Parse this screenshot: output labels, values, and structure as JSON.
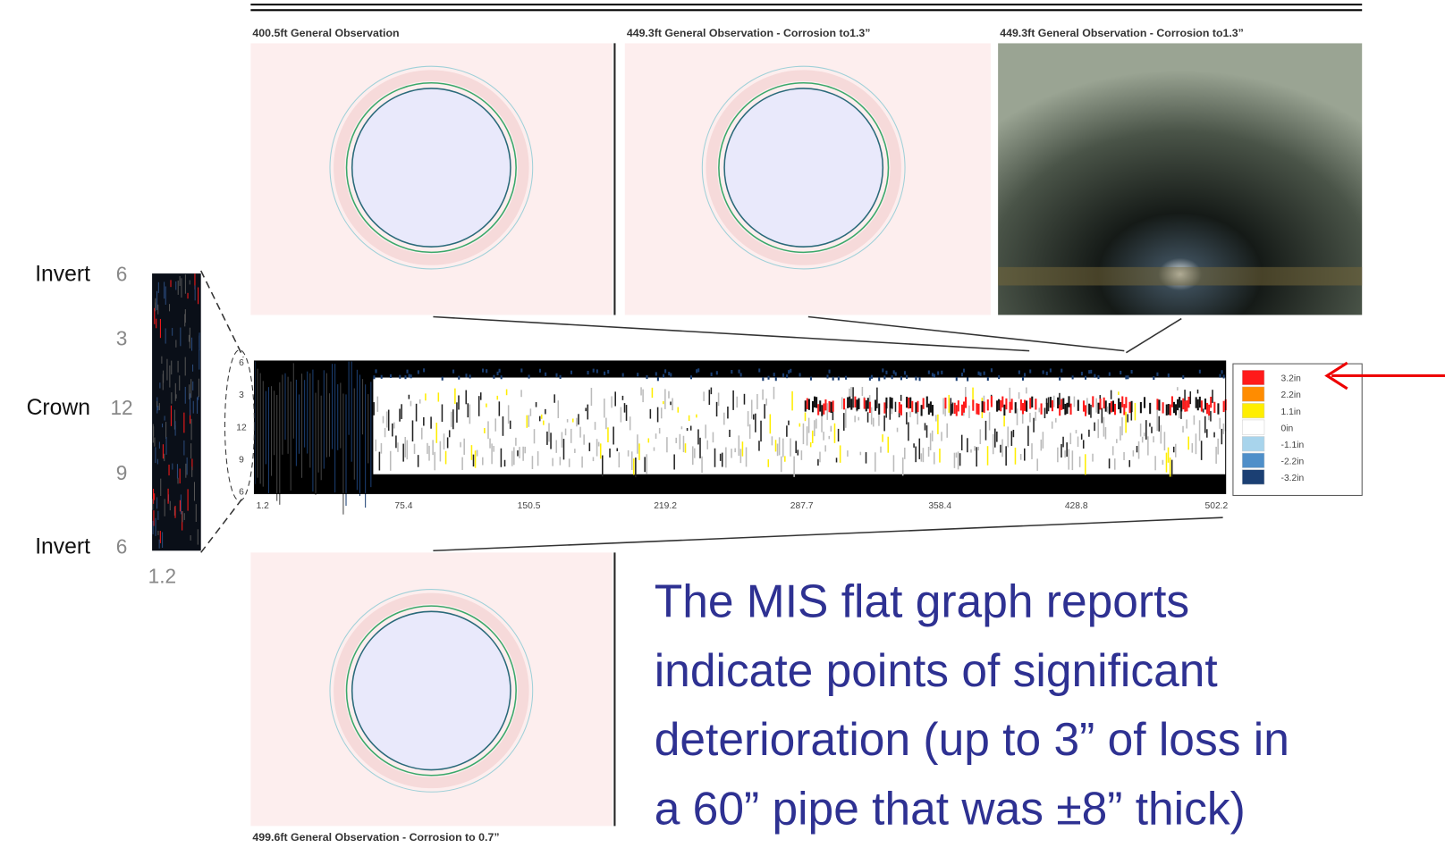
{
  "panels": [
    {
      "label": "400.5ft General Observation"
    },
    {
      "label": "449.3ft General Observation - Corrosion to1.3”"
    },
    {
      "label": "449.3ft General Observation - Corrosion to1.3”"
    },
    {
      "label": "499.6ft General Observation - Corrosion to 0.7”"
    }
  ],
  "strip": {
    "labels": [
      {
        "name": "Invert",
        "tick": "6"
      },
      {
        "tick": "3"
      },
      {
        "name": "Crown",
        "tick": "12"
      },
      {
        "tick": "9"
      },
      {
        "name": "Invert",
        "tick": "6"
      }
    ],
    "x_label": "1.2"
  },
  "flat_graph": {
    "y_labels": [
      "6",
      "3",
      "12",
      "9",
      "6"
    ],
    "x_labels": [
      "1.2",
      "75.4",
      "150.5",
      "219.2",
      "287.7",
      "358.4",
      "428.8",
      "502.2"
    ],
    "legend": [
      {
        "label": "3.2in",
        "color": "#ff1a1a"
      },
      {
        "label": "2.2in",
        "color": "#ff8c00"
      },
      {
        "label": "1.1in",
        "color": "#ffee00"
      },
      {
        "label": "0in",
        "color": "#ffffff"
      },
      {
        "label": "-1.1in",
        "color": "#a8d4ec"
      },
      {
        "label": "-2.2in",
        "color": "#4f8fc9"
      },
      {
        "label": "-3.2in",
        "color": "#1b3f73"
      }
    ]
  },
  "caption": [
    "The MIS flat graph reports",
    "indicate points of significant",
    "deterioration (up to 3” of loss in",
    "a 60” pipe that was ±8” thick)"
  ]
}
